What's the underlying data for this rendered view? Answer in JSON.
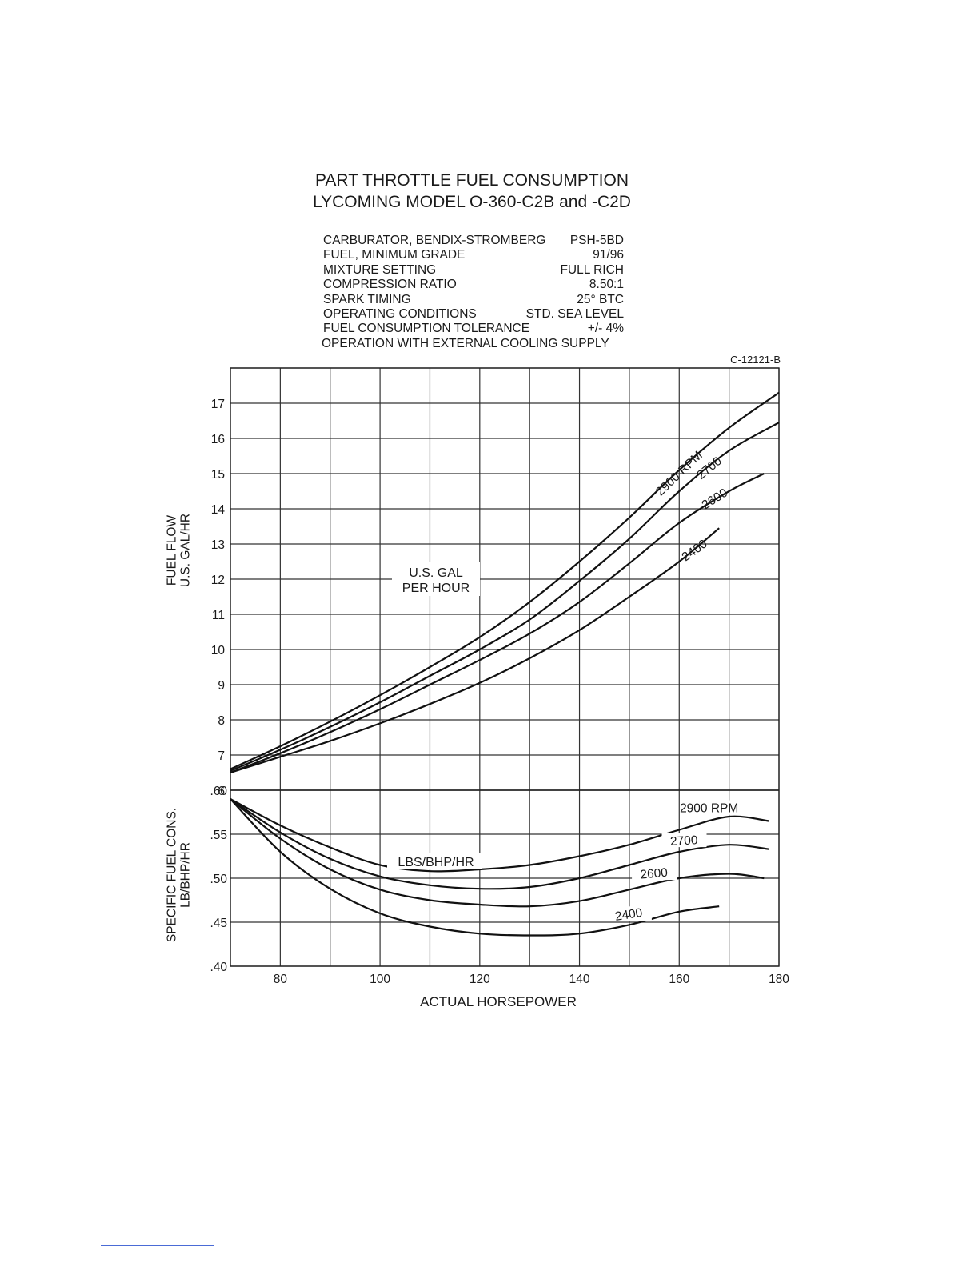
{
  "title": "PART THROTTLE FUEL CONSUMPTION",
  "subtitle": "LYCOMING MODEL O-360-C2B and -C2D",
  "specs": [
    {
      "label": "CARBURATOR,  BENDIX-STROMBERG",
      "value": "PSH-5BD"
    },
    {
      "label": "FUEL, MINIMUM GRADE",
      "value": "91/96"
    },
    {
      "label": "MIXTURE SETTING",
      "value": "FULL RICH"
    },
    {
      "label": "COMPRESSION RATIO",
      "value": "8.50:1"
    },
    {
      "label": "SPARK TIMING",
      "value": "25° BTC"
    },
    {
      "label": "OPERATING CONDITIONS",
      "value": "STD. SEA LEVEL"
    },
    {
      "label": "FUEL CONSUMPTION TOLERANCE",
      "value": "+/- 4%"
    }
  ],
  "spec_note": "OPERATION WITH EXTERNAL COOLING SUPPLY",
  "drawing_code": "C-12121-B",
  "chart_data": [
    {
      "type": "line",
      "title": "U.S. GAL PER HOUR",
      "annotation_lines": [
        "U.S. GAL",
        "PER HOUR"
      ],
      "ylabel_lines": [
        "FUEL FLOW",
        "U.S. GAL/HR"
      ],
      "xlabel": "ACTUAL  HORSEPOWER",
      "xlim": [
        70,
        180
      ],
      "ylim": [
        6,
        18
      ],
      "yticks": [
        6,
        7,
        8,
        9,
        10,
        11,
        12,
        13,
        14,
        15,
        16,
        17
      ],
      "grid": true,
      "series": [
        {
          "name": "2900 RPM",
          "x": [
            70,
            80,
            90,
            100,
            110,
            120,
            130,
            140,
            150,
            160,
            170,
            180
          ],
          "y": [
            6.6,
            7.25,
            7.95,
            8.7,
            9.5,
            10.35,
            11.35,
            12.5,
            13.75,
            15.1,
            16.3,
            17.3
          ]
        },
        {
          "name": "2700",
          "x": [
            70,
            80,
            90,
            100,
            110,
            120,
            130,
            140,
            150,
            160,
            170,
            180
          ],
          "y": [
            6.55,
            7.15,
            7.8,
            8.5,
            9.25,
            10.0,
            10.85,
            11.95,
            13.15,
            14.5,
            15.65,
            16.45
          ]
        },
        {
          "name": "2600",
          "x": [
            70,
            80,
            90,
            100,
            110,
            120,
            130,
            140,
            150,
            160,
            170,
            177
          ],
          "y": [
            6.5,
            7.05,
            7.65,
            8.3,
            9.0,
            9.7,
            10.45,
            11.35,
            12.45,
            13.6,
            14.5,
            15.0
          ]
        },
        {
          "name": "2400",
          "x": [
            70,
            80,
            90,
            100,
            110,
            120,
            130,
            140,
            150,
            160,
            168
          ],
          "y": [
            6.5,
            6.95,
            7.4,
            7.9,
            8.45,
            9.05,
            9.75,
            10.55,
            11.5,
            12.5,
            13.45
          ]
        }
      ]
    },
    {
      "type": "line",
      "title": "LBS/BHP/HR",
      "annotation_lines": [
        "LBS/BHP/HR"
      ],
      "ylabel_lines": [
        "SPECIFIC FUEL CONS.",
        "LB/BHP/HR"
      ],
      "xlabel": "ACTUAL  HORSEPOWER",
      "xlim": [
        70,
        180
      ],
      "ylim": [
        0.4,
        0.6
      ],
      "yticks": [
        ".40",
        ".45",
        ".50",
        ".55",
        ".60"
      ],
      "xticks": [
        80,
        100,
        120,
        140,
        160,
        180
      ],
      "grid": true,
      "series": [
        {
          "name": "2900 RPM",
          "x": [
            70,
            80,
            90,
            100,
            110,
            120,
            130,
            140,
            150,
            160,
            170,
            178
          ],
          "y": [
            0.59,
            0.56,
            0.535,
            0.515,
            0.508,
            0.51,
            0.515,
            0.525,
            0.538,
            0.555,
            0.57,
            0.565
          ]
        },
        {
          "name": "2700",
          "x": [
            70,
            80,
            90,
            100,
            110,
            120,
            130,
            140,
            150,
            160,
            170,
            178
          ],
          "y": [
            0.59,
            0.552,
            0.522,
            0.502,
            0.492,
            0.488,
            0.49,
            0.5,
            0.515,
            0.53,
            0.538,
            0.533
          ]
        },
        {
          "name": "2600",
          "x": [
            70,
            80,
            90,
            100,
            110,
            120,
            130,
            140,
            150,
            160,
            170,
            177
          ],
          "y": [
            0.59,
            0.545,
            0.51,
            0.487,
            0.475,
            0.47,
            0.468,
            0.474,
            0.487,
            0.5,
            0.505,
            0.5
          ]
        },
        {
          "name": "2400",
          "x": [
            70,
            80,
            90,
            100,
            110,
            120,
            130,
            140,
            150,
            160,
            168
          ],
          "y": [
            0.59,
            0.53,
            0.488,
            0.46,
            0.445,
            0.437,
            0.435,
            0.437,
            0.447,
            0.462,
            0.468
          ]
        }
      ]
    }
  ]
}
